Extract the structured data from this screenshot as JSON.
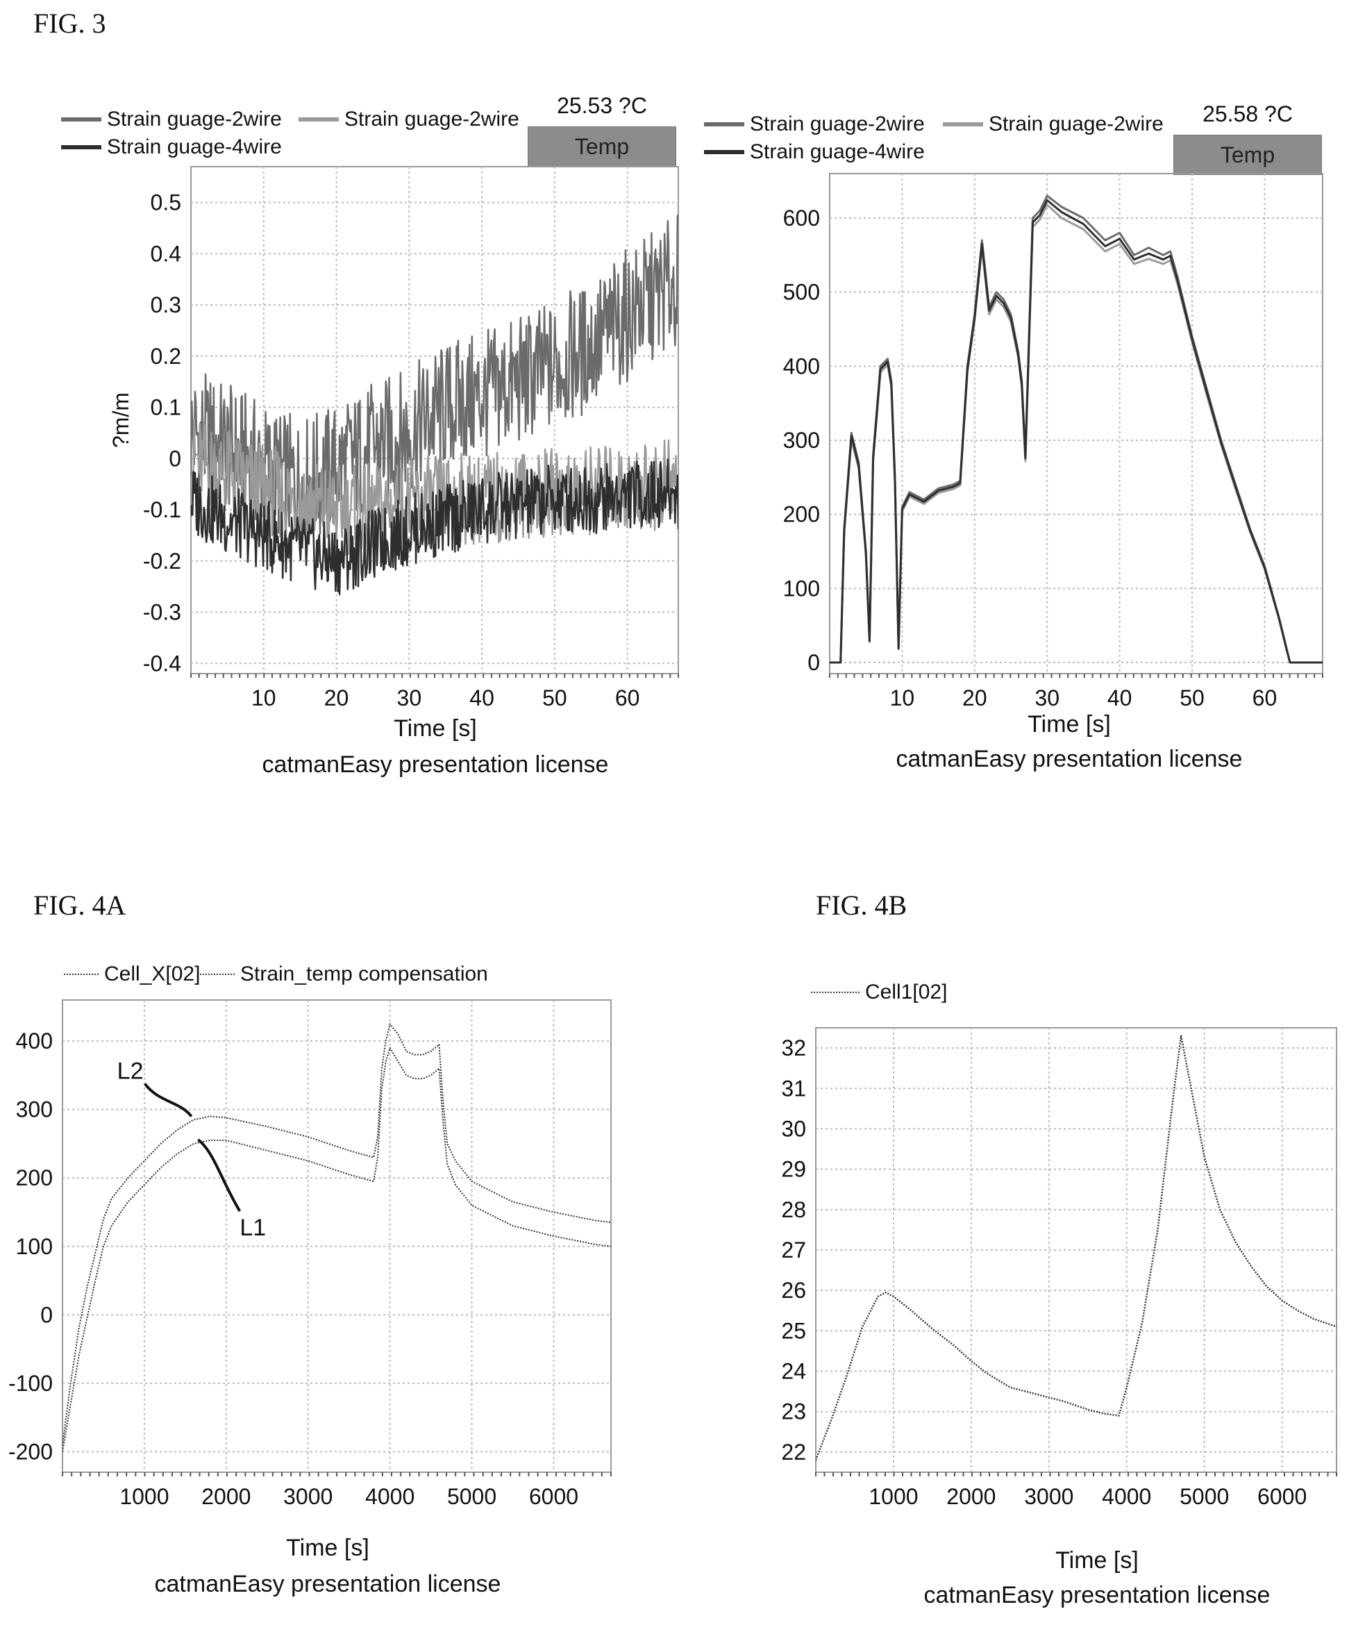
{
  "labels": {
    "fig3": "FIG. 3",
    "fig4a": "FIG. 4A",
    "fig4b": "FIG. 4B"
  },
  "fig3_left": {
    "legend": [
      "Strain guage-2wire",
      "Strain guage-2wire",
      "Strain guage-4wire"
    ],
    "temp_value": "25.53 ?C",
    "temp_label": "Temp",
    "xlabel": "Time [s]",
    "footer": "catmanEasy presentation license"
  },
  "fig3_right": {
    "legend": [
      "Strain guage-2wire",
      "Strain guage-2wire",
      "Strain guage-4wire"
    ],
    "temp_value": "25.58 ?C",
    "temp_label": "Temp",
    "xlabel": "Time [s]",
    "footer": "catmanEasy presentation license"
  },
  "fig4a": {
    "legend": [
      "Cell_X[02]",
      "Strain_temp compensation"
    ],
    "annotations": [
      "L2",
      "L1"
    ],
    "xlabel": "Time [s]",
    "footer": "catmanEasy presentation license"
  },
  "fig4b": {
    "legend": [
      "Cell1[02]"
    ],
    "xlabel": "Time [s]",
    "footer": "catmanEasy presentation license"
  },
  "colors": {
    "series_a": "#6b6b6b",
    "series_b": "#9a9a9a",
    "series_c": "#2e2e2e",
    "temp_box": "#8c8c8c",
    "grid": "#bbbbbb"
  },
  "chart_data": [
    {
      "type": "line",
      "xlabel": "Time [s]",
      "ylabel": "?m/m",
      "xlim": [
        0,
        67
      ],
      "ylim": [
        -0.42,
        0.57
      ],
      "xticks": [
        10,
        20,
        30,
        40,
        50,
        60
      ],
      "yticks": [
        -0.4,
        -0.3,
        -0.2,
        -0.1,
        0,
        0.1,
        0.2,
        0.3,
        0.4,
        0.5
      ],
      "grid": true,
      "legend_position": "top-left",
      "series": [
        {
          "name": "Strain guage-2wire",
          "x": [
            0,
            5,
            10,
            15,
            20,
            25,
            30,
            35,
            40,
            45,
            50,
            55,
            60,
            65,
            67
          ],
          "y": [
            0.05,
            0.02,
            -0.02,
            -0.05,
            -0.02,
            0.02,
            0.05,
            0.1,
            0.12,
            0.15,
            0.18,
            0.22,
            0.28,
            0.33,
            0.35
          ]
        },
        {
          "name": "Strain guage-2wire",
          "x": [
            0,
            5,
            10,
            15,
            20,
            25,
            30,
            35,
            40,
            45,
            50,
            55,
            60,
            65,
            67
          ],
          "y": [
            0.0,
            -0.03,
            -0.06,
            -0.08,
            -0.1,
            -0.1,
            -0.09,
            -0.08,
            -0.08,
            -0.07,
            -0.07,
            -0.06,
            -0.06,
            -0.05,
            -0.05
          ]
        },
        {
          "name": "Strain guage-4wire",
          "x": [
            0,
            5,
            10,
            15,
            20,
            25,
            30,
            35,
            40,
            45,
            50,
            55,
            60,
            65,
            67
          ],
          "y": [
            -0.08,
            -0.12,
            -0.15,
            -0.18,
            -0.2,
            -0.17,
            -0.14,
            -0.12,
            -0.1,
            -0.09,
            -0.08,
            -0.08,
            -0.07,
            -0.07,
            -0.07
          ]
        }
      ]
    },
    {
      "type": "line",
      "xlabel": "Time [s]",
      "xlim": [
        0,
        68
      ],
      "ylim": [
        -15,
        660
      ],
      "xticks": [
        10,
        20,
        30,
        40,
        50,
        60
      ],
      "yticks": [
        0,
        100,
        200,
        300,
        400,
        500,
        600
      ],
      "grid": true,
      "legend_position": "top-left",
      "series": [
        {
          "name": "Strain guage-2wire",
          "x": [
            0,
            1.5,
            2,
            3,
            4,
            5,
            5.5,
            6,
            7,
            8,
            8.5,
            9,
            9.5,
            10,
            11,
            13,
            15,
            17,
            18,
            19,
            20,
            21,
            22,
            23,
            24,
            25,
            26,
            26.5,
            27,
            28,
            29,
            30,
            32,
            35,
            38,
            40,
            42,
            44,
            46,
            47,
            48,
            50,
            52,
            54,
            56,
            58,
            60,
            62,
            63,
            63.5,
            64,
            66,
            68
          ],
          "y": [
            0,
            0,
            180,
            310,
            270,
            150,
            30,
            280,
            400,
            410,
            380,
            250,
            20,
            210,
            230,
            220,
            235,
            240,
            245,
            400,
            470,
            570,
            480,
            500,
            490,
            470,
            420,
            380,
            280,
            600,
            610,
            630,
            615,
            600,
            570,
            580,
            550,
            560,
            550,
            555,
            520,
            440,
            370,
            300,
            240,
            180,
            130,
            60,
            20,
            0,
            0,
            0,
            0
          ]
        },
        {
          "name": "Strain guage-2wire",
          "x": [
            0,
            1.5,
            2,
            3,
            4,
            5,
            5.5,
            6,
            7,
            8,
            8.5,
            9,
            9.5,
            10,
            11,
            13,
            15,
            17,
            18,
            19,
            20,
            21,
            22,
            23,
            24,
            25,
            26,
            26.5,
            27,
            28,
            29,
            30,
            32,
            35,
            38,
            40,
            42,
            44,
            46,
            47,
            48,
            50,
            52,
            54,
            56,
            58,
            60,
            62,
            63,
            63.5,
            64,
            66,
            68
          ],
          "y": [
            0,
            0,
            175,
            300,
            262,
            145,
            28,
            272,
            392,
            402,
            372,
            242,
            18,
            204,
            224,
            214,
            229,
            234,
            239,
            392,
            462,
            560,
            470,
            490,
            480,
            460,
            412,
            372,
            272,
            588,
            598,
            618,
            600,
            585,
            555,
            565,
            538,
            545,
            538,
            543,
            510,
            432,
            362,
            294,
            234,
            176,
            126,
            58,
            18,
            0,
            0,
            0,
            0
          ]
        },
        {
          "name": "Strain guage-4wire",
          "x": [
            0,
            1.5,
            2,
            3,
            4,
            5,
            5.5,
            6,
            7,
            8,
            8.5,
            9,
            9.5,
            10,
            11,
            13,
            15,
            17,
            18,
            19,
            20,
            21,
            22,
            23,
            24,
            25,
            26,
            26.5,
            27,
            28,
            29,
            30,
            32,
            35,
            38,
            40,
            42,
            44,
            46,
            47,
            48,
            50,
            52,
            54,
            56,
            58,
            60,
            62,
            63,
            63.5,
            64,
            66,
            68
          ],
          "y": [
            0,
            0,
            178,
            306,
            266,
            148,
            29,
            276,
            396,
            406,
            376,
            246,
            19,
            207,
            227,
            217,
            232,
            237,
            242,
            396,
            466,
            565,
            475,
            495,
            485,
            465,
            416,
            376,
            276,
            594,
            604,
            624,
            608,
            592,
            562,
            572,
            544,
            552,
            544,
            549,
            515,
            436,
            366,
            297,
            237,
            178,
            128,
            59,
            19,
            0,
            0,
            0,
            0
          ]
        }
      ]
    },
    {
      "type": "line",
      "xlabel": "Time [s]",
      "xlim": [
        0,
        6700
      ],
      "ylim": [
        -230,
        460
      ],
      "xticks": [
        1000,
        2000,
        3000,
        4000,
        5000,
        6000
      ],
      "yticks": [
        -200,
        -100,
        0,
        100,
        200,
        300,
        400
      ],
      "grid": true,
      "legend_position": "top-left",
      "series": [
        {
          "name": "Cell_X[02]",
          "x": [
            0,
            100,
            200,
            300,
            400,
            500,
            600,
            800,
            1000,
            1200,
            1400,
            1600,
            1800,
            2000,
            2500,
            3000,
            3500,
            3800,
            3850,
            3900,
            3950,
            4000,
            4100,
            4200,
            4300,
            4400,
            4500,
            4600,
            4650,
            4700,
            4800,
            5000,
            5500,
            6000,
            6500,
            6700
          ],
          "y": [
            -200,
            -130,
            -60,
            -5,
            50,
            100,
            130,
            165,
            190,
            215,
            235,
            250,
            255,
            255,
            240,
            225,
            205,
            195,
            230,
            330,
            370,
            390,
            370,
            350,
            345,
            345,
            350,
            360,
            280,
            220,
            190,
            160,
            130,
            115,
            103,
            100
          ]
        },
        {
          "name": "Strain_temp compensation",
          "x": [
            0,
            100,
            200,
            300,
            400,
            500,
            600,
            800,
            1000,
            1200,
            1400,
            1600,
            1800,
            2000,
            2500,
            3000,
            3500,
            3800,
            3850,
            3900,
            3950,
            4000,
            4100,
            4200,
            4300,
            4400,
            4500,
            4600,
            4650,
            4700,
            4800,
            5000,
            5500,
            6000,
            6500,
            6700
          ],
          "y": [
            -190,
            -100,
            -20,
            40,
            90,
            140,
            170,
            200,
            225,
            250,
            270,
            285,
            290,
            288,
            275,
            260,
            240,
            230,
            260,
            360,
            400,
            425,
            410,
            385,
            380,
            380,
            385,
            395,
            310,
            250,
            225,
            195,
            165,
            150,
            138,
            135
          ]
        }
      ]
    },
    {
      "type": "line",
      "xlabel": "Time [s]",
      "xlim": [
        0,
        6700
      ],
      "ylim": [
        21.5,
        32.5
      ],
      "xticks": [
        1000,
        2000,
        3000,
        4000,
        5000,
        6000
      ],
      "yticks": [
        22,
        23,
        24,
        25,
        26,
        27,
        28,
        29,
        30,
        31,
        32
      ],
      "grid": true,
      "legend_position": "top-left",
      "series": [
        {
          "name": "Cell1[02]",
          "x": [
            0,
            200,
            400,
            600,
            800,
            900,
            1000,
            1200,
            1500,
            1800,
            2000,
            2200,
            2500,
            2700,
            3000,
            3200,
            3500,
            3700,
            3900,
            4000,
            4200,
            4400,
            4600,
            4700,
            4800,
            5000,
            5200,
            5400,
            5600,
            5800,
            6000,
            6200,
            6400,
            6700
          ],
          "y": [
            21.8,
            22.8,
            23.9,
            25.1,
            25.85,
            25.95,
            25.85,
            25.55,
            25.05,
            24.6,
            24.25,
            23.95,
            23.6,
            23.5,
            23.35,
            23.25,
            23.05,
            22.95,
            22.9,
            23.6,
            25.2,
            27.5,
            30.8,
            32.3,
            31.3,
            29.3,
            28.0,
            27.2,
            26.6,
            26.1,
            25.75,
            25.5,
            25.3,
            25.1
          ]
        }
      ]
    }
  ]
}
